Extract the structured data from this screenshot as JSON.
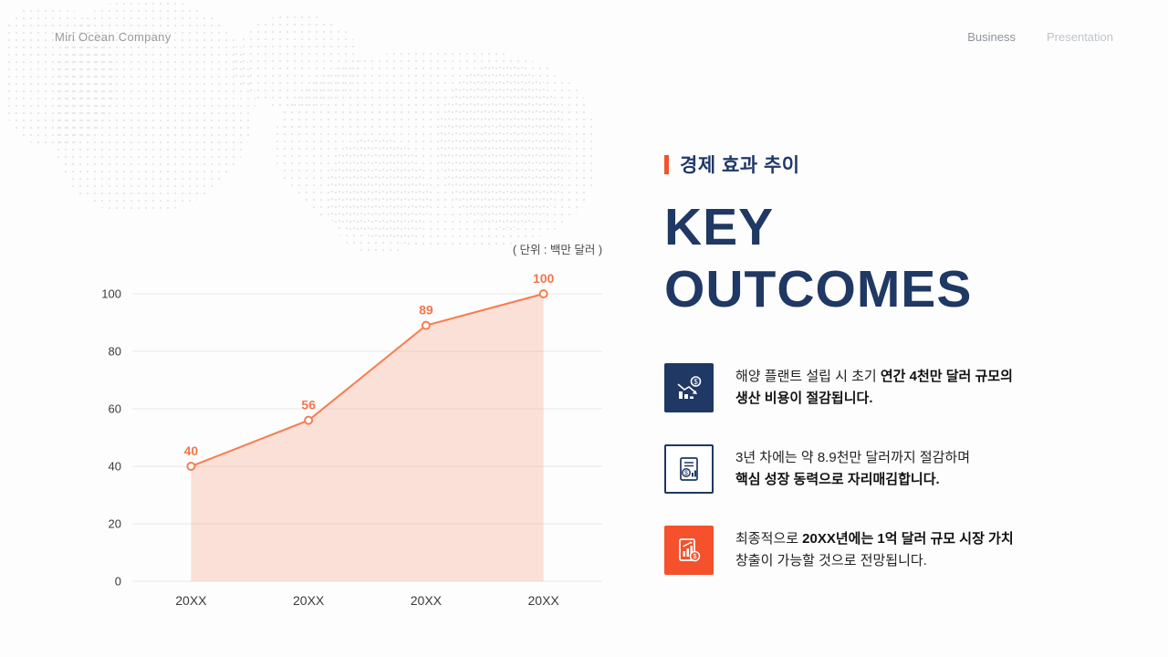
{
  "header": {
    "brand": "Miri Ocean Company",
    "nav_business": "Business",
    "nav_presentation": "Presentation"
  },
  "section": {
    "kicker": "경제 효과 추이",
    "title_lines": [
      "KEY",
      "OUTCOMES"
    ]
  },
  "chart_data": {
    "type": "area",
    "title": "경제 효과 추이",
    "unit_label": "( 단위 : 백만 달러 )",
    "categories": [
      "20XX",
      "20XX",
      "20XX",
      "20XX"
    ],
    "values": [
      40,
      56,
      89,
      100
    ],
    "y_ticks": [
      0,
      20,
      40,
      60,
      80,
      100
    ],
    "ylim": [
      0,
      100
    ],
    "grid": true,
    "legend": false,
    "line_color": "#f87c50",
    "fill_color": "rgba(248,124,80,0.22)",
    "label_color": "#f4764b",
    "tick_color": "#3b3b3b"
  },
  "outcomes": [
    {
      "icon": "cost-reduction-icon",
      "segments": [
        {
          "text": "해양 플랜트 설립 시 초기 ",
          "bold": false
        },
        {
          "text": "연간 4천만 달러 규모의",
          "bold": true
        },
        {
          "break": true
        },
        {
          "text": "생산 비용이 절감됩니다.",
          "bold": true
        }
      ]
    },
    {
      "icon": "savings-report-icon",
      "segments": [
        {
          "text": "3년 차에는 약 8.9천만 달러까지 절감하며",
          "bold": false
        },
        {
          "break": true
        },
        {
          "text": "핵심 성장 동력으로 자리매김합니다.",
          "bold": true
        }
      ]
    },
    {
      "icon": "market-value-icon",
      "segments": [
        {
          "text": "최종적으로 ",
          "bold": false
        },
        {
          "text": "20XX년에는 1억 달러 규모 시장 가치",
          "bold": true
        },
        {
          "break": true
        },
        {
          "text": "창출이 가능할 것으로 전망됩니다.",
          "bold": false
        }
      ]
    }
  ],
  "colors": {
    "navy": "#1f3864",
    "accent_orange": "#f4512c",
    "line_orange": "#f87c50"
  }
}
